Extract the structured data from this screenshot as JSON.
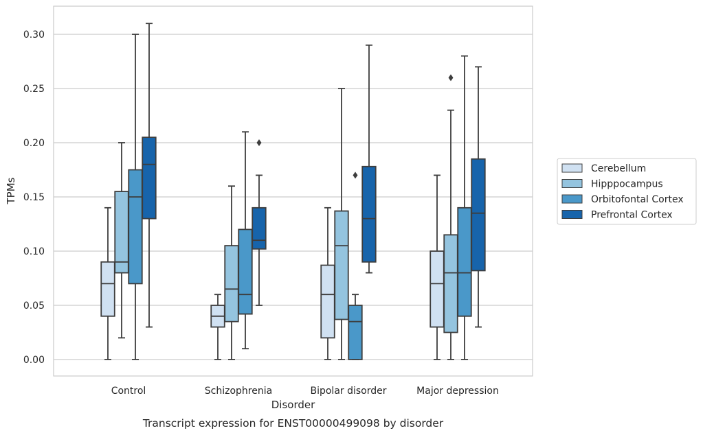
{
  "chart_data": {
    "type": "box",
    "caption": "Transcript expression for ENST00000499098 by disorder",
    "xlabel": "Disorder",
    "ylabel": "TPMs",
    "ylim": [
      -0.015,
      0.325
    ],
    "yticks": [
      0.0,
      0.05,
      0.1,
      0.15,
      0.2,
      0.25,
      0.3
    ],
    "ytick_labels": [
      "0.00",
      "0.05",
      "0.10",
      "0.15",
      "0.20",
      "0.25",
      "0.30"
    ],
    "grid": "horizontal",
    "legend_position": "right",
    "categories": [
      "Control",
      "Schizophrenia",
      "Bipolar disorder",
      "Major depression"
    ],
    "series": [
      {
        "name": "Cerebellum",
        "color": "#d0e1f2",
        "boxes": [
          {
            "whislo": 0.0,
            "q1": 0.04,
            "med": 0.07,
            "q3": 0.09,
            "whishi": 0.14,
            "fliers": []
          },
          {
            "whislo": 0.0,
            "q1": 0.03,
            "med": 0.04,
            "q3": 0.05,
            "whishi": 0.06,
            "fliers": []
          },
          {
            "whislo": 0.0,
            "q1": 0.02,
            "med": 0.06,
            "q3": 0.087,
            "whishi": 0.14,
            "fliers": []
          },
          {
            "whislo": 0.0,
            "q1": 0.03,
            "med": 0.07,
            "q3": 0.1,
            "whishi": 0.17,
            "fliers": []
          }
        ]
      },
      {
        "name": "Hipppocampus",
        "color": "#94c4df",
        "boxes": [
          {
            "whislo": 0.02,
            "q1": 0.08,
            "med": 0.09,
            "q3": 0.155,
            "whishi": 0.2,
            "fliers": []
          },
          {
            "whislo": 0.0,
            "q1": 0.035,
            "med": 0.065,
            "q3": 0.105,
            "whishi": 0.16,
            "fliers": []
          },
          {
            "whislo": 0.0,
            "q1": 0.037,
            "med": 0.105,
            "q3": 0.137,
            "whishi": 0.25,
            "fliers": []
          },
          {
            "whislo": 0.0,
            "q1": 0.025,
            "med": 0.08,
            "q3": 0.115,
            "whishi": 0.23,
            "fliers": [
              0.26
            ]
          }
        ]
      },
      {
        "name": "Orbitofontal Cortex",
        "color": "#4a98c9",
        "boxes": [
          {
            "whislo": 0.0,
            "q1": 0.07,
            "med": 0.15,
            "q3": 0.175,
            "whishi": 0.3,
            "fliers": []
          },
          {
            "whislo": 0.01,
            "q1": 0.042,
            "med": 0.06,
            "q3": 0.12,
            "whishi": 0.21,
            "fliers": []
          },
          {
            "whislo": 0.0,
            "q1": 0.0,
            "med": 0.035,
            "q3": 0.05,
            "whishi": 0.06,
            "fliers": [
              0.17
            ]
          },
          {
            "whislo": 0.0,
            "q1": 0.04,
            "med": 0.08,
            "q3": 0.14,
            "whishi": 0.28,
            "fliers": []
          }
        ]
      },
      {
        "name": "Prefrontal Cortex",
        "color": "#1764ab",
        "boxes": [
          {
            "whislo": 0.03,
            "q1": 0.13,
            "med": 0.18,
            "q3": 0.205,
            "whishi": 0.31,
            "fliers": []
          },
          {
            "whislo": 0.05,
            "q1": 0.102,
            "med": 0.11,
            "q3": 0.14,
            "whishi": 0.17,
            "fliers": [
              0.2
            ]
          },
          {
            "whislo": 0.08,
            "q1": 0.09,
            "med": 0.13,
            "q3": 0.178,
            "whishi": 0.29,
            "fliers": []
          },
          {
            "whislo": 0.03,
            "q1": 0.082,
            "med": 0.135,
            "q3": 0.185,
            "whishi": 0.27,
            "fliers": []
          }
        ]
      }
    ]
  }
}
